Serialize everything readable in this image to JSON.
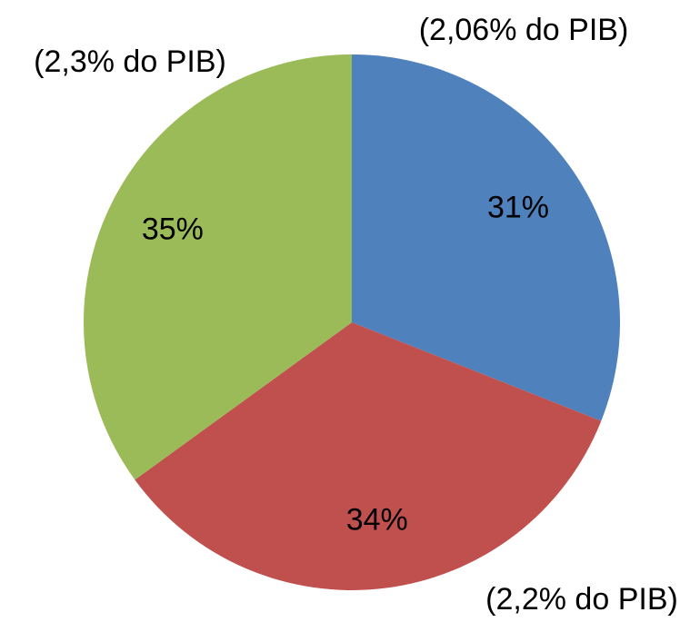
{
  "chart_data": {
    "type": "pie",
    "values": [
      31,
      34,
      35
    ],
    "value_labels": [
      "31%",
      "34%",
      "35%"
    ],
    "annotations": [
      "(2,06% do PIB)",
      "(2,2% do PIB)",
      "(2,3% do PIB)"
    ],
    "colors": [
      "#4f81bd",
      "#c0504d",
      "#9bbb59"
    ]
  }
}
